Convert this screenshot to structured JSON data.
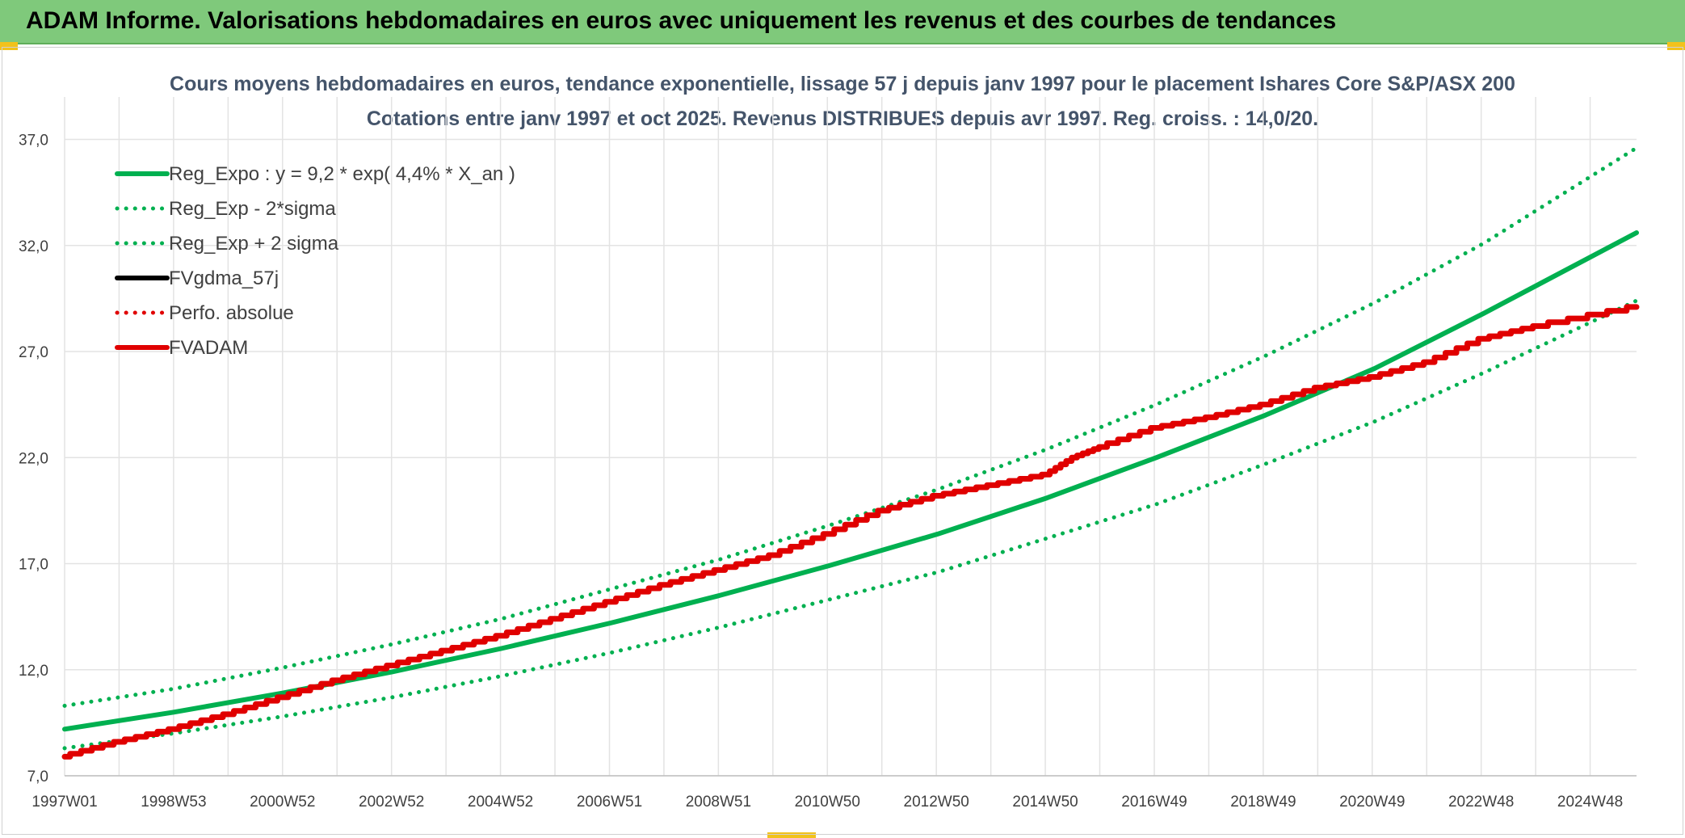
{
  "header": {
    "title": "ADAM Informe. Valorisations hebdomadaires en euros avec uniquement les revenus et des courbes de tendances"
  },
  "chart_data": {
    "type": "line",
    "title": "Cours moyens hebdomadaires en euros, tendance exponentielle, lissage 57 j depuis janv 1997 pour le placement Ishares Core S&P/ASX 200",
    "subtitle": "Cotations entre janv 1997 et oct 2025. Revenus DISTRIBUES depuis avr 1997. Reg. croiss. : 14,0/20.",
    "xlabel": "",
    "ylabel": "",
    "x_tick_labels": [
      "1997W01",
      "1998W53",
      "2000W52",
      "2002W52",
      "2004W52",
      "2006W51",
      "2008W51",
      "2010W50",
      "2012W50",
      "2014W50",
      "2016W49",
      "2018W49",
      "2020W49",
      "2022W48",
      "2024W48"
    ],
    "x_range_years": [
      1997.0,
      2025.8
    ],
    "ylim": [
      7.0,
      39.0
    ],
    "y_ticks": [
      7.0,
      12.0,
      17.0,
      22.0,
      27.0,
      32.0,
      37.0
    ],
    "y_tick_labels": [
      "7,0",
      "12,0",
      "17,0",
      "22,0",
      "27,0",
      "32,0",
      "37,0"
    ],
    "grid": true,
    "legend_position": "top-left",
    "series": [
      {
        "name": "Reg_Expo : y = 9,2 * exp( 4,4% *  X_an )",
        "color": "#00b050",
        "style": "solid",
        "x": [
          1997.0,
          1999.0,
          2001.0,
          2003.0,
          2005.0,
          2007.0,
          2009.0,
          2011.0,
          2013.0,
          2015.0,
          2017.0,
          2019.0,
          2021.0,
          2023.0,
          2025.8
        ],
        "values": [
          9.2,
          10.0,
          10.9,
          11.9,
          13.0,
          14.2,
          15.5,
          16.9,
          18.4,
          20.1,
          22.0,
          24.0,
          26.2,
          28.8,
          32.6
        ]
      },
      {
        "name": "Reg_Exp - 2*sigma",
        "color": "#00b050",
        "style": "dotted",
        "x": [
          1997.0,
          1999.0,
          2001.0,
          2003.0,
          2005.0,
          2007.0,
          2009.0,
          2011.0,
          2013.0,
          2015.0,
          2017.0,
          2019.0,
          2021.0,
          2023.0,
          2025.8
        ],
        "values": [
          8.3,
          9.0,
          9.8,
          10.7,
          11.7,
          12.8,
          14.0,
          15.3,
          16.6,
          18.2,
          19.8,
          21.7,
          23.7,
          26.0,
          29.4
        ]
      },
      {
        "name": "Reg_Exp + 2 sigma",
        "color": "#00b050",
        "style": "dotted",
        "x": [
          1997.0,
          1999.0,
          2001.0,
          2003.0,
          2005.0,
          2007.0,
          2009.0,
          2011.0,
          2013.0,
          2015.0,
          2017.0,
          2019.0,
          2021.0,
          2023.0,
          2025.8
        ],
        "values": [
          10.3,
          11.1,
          12.1,
          13.2,
          14.4,
          15.8,
          17.2,
          18.8,
          20.5,
          22.4,
          24.5,
          26.8,
          29.3,
          32.1,
          36.6
        ]
      },
      {
        "name": "FVgdma_57j",
        "color": "#000000",
        "style": "solid",
        "x": [],
        "values": []
      },
      {
        "name": "Perfo. absolue",
        "color": "#e00000",
        "style": "dotted",
        "x": [],
        "values": []
      },
      {
        "name": "FVADAM",
        "color": "#e00000",
        "style": "solid",
        "x": [
          1997.0,
          1998.0,
          1999.0,
          2000.0,
          2001.0,
          2002.0,
          2003.0,
          2004.0,
          2005.0,
          2006.0,
          2007.0,
          2008.0,
          2009.0,
          2010.0,
          2011.0,
          2012.0,
          2013.0,
          2014.0,
          2015.0,
          2015.5,
          2016.0,
          2017.0,
          2018.0,
          2019.0,
          2020.0,
          2021.0,
          2022.0,
          2023.0,
          2024.0,
          2025.8
        ],
        "values": [
          7.9,
          8.6,
          9.2,
          9.9,
          10.7,
          11.5,
          12.2,
          12.9,
          13.6,
          14.4,
          15.2,
          16.0,
          16.7,
          17.4,
          18.4,
          19.5,
          20.2,
          20.7,
          21.2,
          22.0,
          22.5,
          23.4,
          23.9,
          24.5,
          25.3,
          25.8,
          26.5,
          27.6,
          28.2,
          29.1
        ]
      }
    ]
  }
}
